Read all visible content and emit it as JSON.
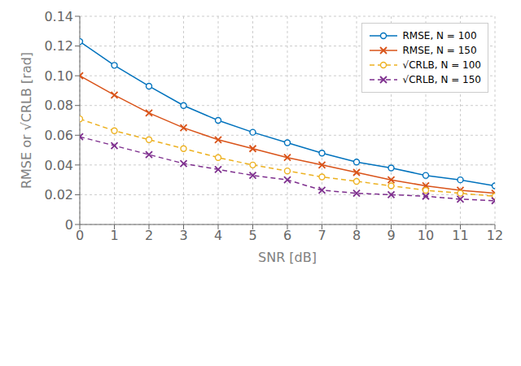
{
  "chart_data": {
    "type": "line",
    "xlabel": "SNR [dB]",
    "ylabel": "RMSE or √CRLB [rad]",
    "x": [
      0,
      1,
      2,
      3,
      4,
      5,
      6,
      7,
      8,
      9,
      10,
      11,
      12
    ],
    "series": [
      {
        "name": "RMSE, N = 100",
        "color": "#0072BD",
        "marker": "circle",
        "line_style": "solid",
        "values": [
          0.123,
          0.107,
          0.093,
          0.08,
          0.07,
          0.062,
          0.055,
          0.048,
          0.042,
          0.038,
          0.033,
          0.03,
          0.026
        ]
      },
      {
        "name": "RMSE, N = 150",
        "color": "#D95319",
        "marker": "x",
        "line_style": "solid",
        "values": [
          0.1,
          0.087,
          0.075,
          0.065,
          0.057,
          0.051,
          0.045,
          0.04,
          0.035,
          0.03,
          0.026,
          0.023,
          0.021
        ]
      },
      {
        "name": "√CRLB, N = 100",
        "color": "#EDB120",
        "marker": "circle",
        "line_style": "dashed",
        "values": [
          0.071,
          0.063,
          0.057,
          0.051,
          0.045,
          0.04,
          0.036,
          0.032,
          0.029,
          0.026,
          0.023,
          0.021,
          0.019
        ]
      },
      {
        "name": "√CRLB, N = 150",
        "color": "#7E2F8E",
        "marker": "x",
        "line_style": "dashed",
        "values": [
          0.059,
          0.053,
          0.047,
          0.041,
          0.037,
          0.033,
          0.03,
          0.023,
          0.021,
          0.02,
          0.019,
          0.017,
          0.016
        ]
      }
    ],
    "xlim": [
      0,
      12
    ],
    "xticks": [
      0,
      1,
      2,
      3,
      4,
      5,
      6,
      7,
      8,
      9,
      10,
      11,
      12
    ],
    "ylim": [
      0,
      0.14
    ],
    "yticks": [
      0,
      0.02,
      0.04,
      0.06,
      0.08,
      {
        "value": 0.1,
        "label": "0.10"
      },
      0.12,
      0.14
    ],
    "grid": true,
    "legend": "upper right"
  }
}
